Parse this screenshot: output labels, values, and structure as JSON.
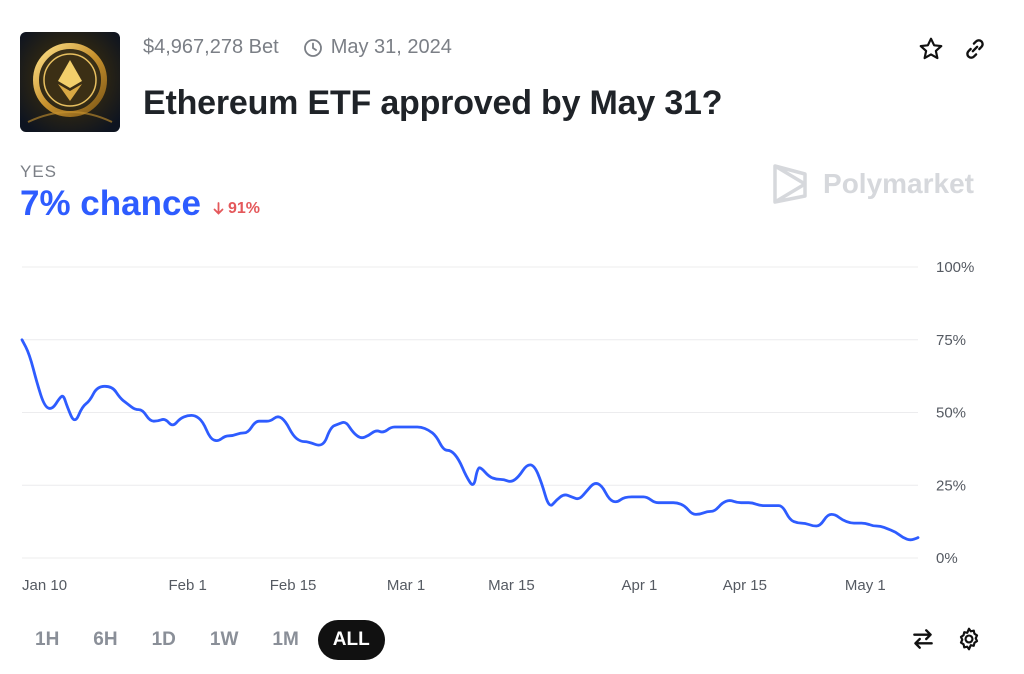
{
  "header": {
    "volume": "$4,967,278 Bet",
    "date": "May 31, 2024",
    "title": "Ethereum ETF approved by May 31?"
  },
  "icons": {
    "clock": "clock-icon",
    "star": "star-icon",
    "link": "link-icon",
    "swap": "swap-icon",
    "settings": "gear-icon"
  },
  "outcome": {
    "label": "YES",
    "chance": "7% chance",
    "change": "91%",
    "chance_color": "#2e5cff",
    "change_color": "#e4585b"
  },
  "brand": {
    "name": "Polymarket"
  },
  "time_ranges": [
    {
      "label": "1H",
      "active": false
    },
    {
      "label": "6H",
      "active": false
    },
    {
      "label": "1D",
      "active": false
    },
    {
      "label": "1W",
      "active": false
    },
    {
      "label": "1M",
      "active": false
    },
    {
      "label": "ALL",
      "active": true
    }
  ],
  "chart_data": {
    "type": "line",
    "line_color": "#2e5cff",
    "grid": true,
    "ylim": [
      0,
      100
    ],
    "y_ticks": [
      {
        "value": 100,
        "label": "100%"
      },
      {
        "value": 75,
        "label": "75%"
      },
      {
        "value": 50,
        "label": "50%"
      },
      {
        "value": 25,
        "label": "25%"
      },
      {
        "value": 0,
        "label": "0%"
      }
    ],
    "x_ticks": [
      {
        "date": "2024-01-10",
        "label": "Jan 10"
      },
      {
        "date": "2024-02-01",
        "label": "Feb 1"
      },
      {
        "date": "2024-02-15",
        "label": "Feb 15"
      },
      {
        "date": "2024-03-01",
        "label": "Mar 1"
      },
      {
        "date": "2024-03-15",
        "label": "Mar 15"
      },
      {
        "date": "2024-04-01",
        "label": "Apr 1"
      },
      {
        "date": "2024-04-15",
        "label": "Apr 15"
      },
      {
        "date": "2024-05-01",
        "label": "May 1"
      }
    ],
    "series": [
      {
        "points": [
          [
            "2024-01-10",
            75
          ],
          [
            "2024-01-11",
            70
          ],
          [
            "2024-01-12",
            60
          ],
          [
            "2024-01-13",
            52
          ],
          [
            "2024-01-14",
            51
          ],
          [
            "2024-01-15",
            55
          ],
          [
            "2024-01-15",
            56
          ],
          [
            "2024-01-16",
            52
          ],
          [
            "2024-01-17",
            46
          ],
          [
            "2024-01-18",
            52
          ],
          [
            "2024-01-19",
            54
          ],
          [
            "2024-01-20",
            59
          ],
          [
            "2024-01-22",
            59
          ],
          [
            "2024-01-23",
            55
          ],
          [
            "2024-01-24",
            53
          ],
          [
            "2024-01-25",
            51
          ],
          [
            "2024-01-26",
            51
          ],
          [
            "2024-01-27",
            47
          ],
          [
            "2024-01-28",
            47
          ],
          [
            "2024-01-29",
            48
          ],
          [
            "2024-01-30",
            45
          ],
          [
            "2024-01-31",
            48
          ],
          [
            "2024-02-01",
            49
          ],
          [
            "2024-02-02",
            49
          ],
          [
            "2024-02-03",
            47
          ],
          [
            "2024-02-04",
            41
          ],
          [
            "2024-02-05",
            40
          ],
          [
            "2024-02-06",
            42
          ],
          [
            "2024-02-07",
            42
          ],
          [
            "2024-02-08",
            43
          ],
          [
            "2024-02-09",
            43
          ],
          [
            "2024-02-10",
            47
          ],
          [
            "2024-02-11",
            47
          ],
          [
            "2024-02-12",
            47
          ],
          [
            "2024-02-13",
            49
          ],
          [
            "2024-02-14",
            47
          ],
          [
            "2024-02-15",
            42
          ],
          [
            "2024-02-16",
            40
          ],
          [
            "2024-02-17",
            40
          ],
          [
            "2024-02-19",
            38
          ],
          [
            "2024-02-20",
            45
          ],
          [
            "2024-02-21",
            46
          ],
          [
            "2024-02-22",
            47
          ],
          [
            "2024-02-23",
            43
          ],
          [
            "2024-02-24",
            41
          ],
          [
            "2024-02-25",
            42
          ],
          [
            "2024-02-26",
            44
          ],
          [
            "2024-02-27",
            43
          ],
          [
            "2024-02-28",
            45
          ],
          [
            "2024-02-29",
            45
          ],
          [
            "2024-03-01",
            45
          ],
          [
            "2024-03-02",
            45
          ],
          [
            "2024-03-03",
            45
          ],
          [
            "2024-03-04",
            44
          ],
          [
            "2024-03-05",
            42
          ],
          [
            "2024-03-06",
            37
          ],
          [
            "2024-03-07",
            37
          ],
          [
            "2024-03-08",
            34
          ],
          [
            "2024-03-09",
            28
          ],
          [
            "2024-03-10",
            24
          ],
          [
            "2024-03-10",
            31
          ],
          [
            "2024-03-11",
            31
          ],
          [
            "2024-03-12",
            28
          ],
          [
            "2024-03-13",
            27
          ],
          [
            "2024-03-14",
            27
          ],
          [
            "2024-03-15",
            26
          ],
          [
            "2024-03-16",
            28
          ],
          [
            "2024-03-17",
            32
          ],
          [
            "2024-03-18",
            32
          ],
          [
            "2024-03-19",
            26
          ],
          [
            "2024-03-20",
            17
          ],
          [
            "2024-03-21",
            20
          ],
          [
            "2024-03-22",
            22
          ],
          [
            "2024-03-23",
            21
          ],
          [
            "2024-03-24",
            20
          ],
          [
            "2024-03-25",
            23
          ],
          [
            "2024-03-26",
            26
          ],
          [
            "2024-03-27",
            25
          ],
          [
            "2024-03-28",
            20
          ],
          [
            "2024-03-29",
            19
          ],
          [
            "2024-03-30",
            21
          ],
          [
            "2024-04-01",
            21
          ],
          [
            "2024-04-02",
            21
          ],
          [
            "2024-04-03",
            19
          ],
          [
            "2024-04-04",
            19
          ],
          [
            "2024-04-05",
            19
          ],
          [
            "2024-04-06",
            19
          ],
          [
            "2024-04-07",
            18
          ],
          [
            "2024-04-08",
            15
          ],
          [
            "2024-04-09",
            15
          ],
          [
            "2024-04-10",
            16
          ],
          [
            "2024-04-11",
            16
          ],
          [
            "2024-04-12",
            19
          ],
          [
            "2024-04-13",
            20
          ],
          [
            "2024-04-14",
            19
          ],
          [
            "2024-04-15",
            19
          ],
          [
            "2024-04-16",
            19
          ],
          [
            "2024-04-17",
            18
          ],
          [
            "2024-04-18",
            18
          ],
          [
            "2024-04-19",
            18
          ],
          [
            "2024-04-20",
            18
          ],
          [
            "2024-04-21",
            13
          ],
          [
            "2024-04-22",
            12
          ],
          [
            "2024-04-23",
            12
          ],
          [
            "2024-04-24",
            11
          ],
          [
            "2024-04-25",
            11
          ],
          [
            "2024-04-26",
            15
          ],
          [
            "2024-04-27",
            15
          ],
          [
            "2024-04-28",
            13
          ],
          [
            "2024-04-29",
            12
          ],
          [
            "2024-04-30",
            12
          ],
          [
            "2024-05-01",
            12
          ],
          [
            "2024-05-02",
            11
          ],
          [
            "2024-05-03",
            11
          ],
          [
            "2024-05-04",
            10
          ],
          [
            "2024-05-05",
            9
          ],
          [
            "2024-05-06",
            7
          ],
          [
            "2024-05-07",
            6
          ],
          [
            "2024-05-08",
            7
          ]
        ]
      }
    ]
  }
}
